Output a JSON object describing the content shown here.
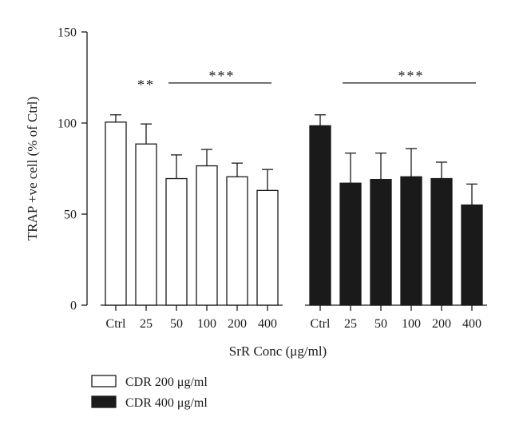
{
  "chart_data": {
    "type": "bar",
    "ylabel": "TRAP +ve cell (% of Ctrl)",
    "xlabel": "SrR Conc (μg/ml)",
    "ylim": [
      0,
      150
    ],
    "yticks": [
      0,
      50,
      100,
      150
    ],
    "grid": false,
    "legend_position": "bottom-left",
    "groups": [
      {
        "name": "CDR 200 μg/ml",
        "fill": "#ffffff",
        "stroke": "#1a1a1a",
        "categories": [
          "Ctrl",
          "25",
          "50",
          "100",
          "200",
          "400"
        ],
        "values": [
          100.5,
          88.5,
          69.5,
          76.5,
          70.5,
          63
        ],
        "errors": [
          4,
          11,
          13,
          9,
          7.5,
          11.5
        ]
      },
      {
        "name": "CDR 400 μg/ml",
        "fill": "#1a1a1a",
        "stroke": "#1a1a1a",
        "categories": [
          "Ctrl",
          "25",
          "50",
          "100",
          "200",
          "400"
        ],
        "values": [
          98.5,
          67,
          69,
          70.5,
          69.5,
          55
        ],
        "errors": [
          6,
          16.5,
          14.5,
          15.5,
          9,
          11.5
        ]
      }
    ],
    "annotations": [
      {
        "text": "**",
        "group": 0,
        "from": 1,
        "to": 1,
        "line": false,
        "y": 117
      },
      {
        "text": "***",
        "group": 0,
        "from": 2,
        "to": 5,
        "line": true,
        "y": 122
      },
      {
        "text": "***",
        "group": 1,
        "from": 1,
        "to": 5,
        "line": true,
        "y": 122
      }
    ]
  }
}
